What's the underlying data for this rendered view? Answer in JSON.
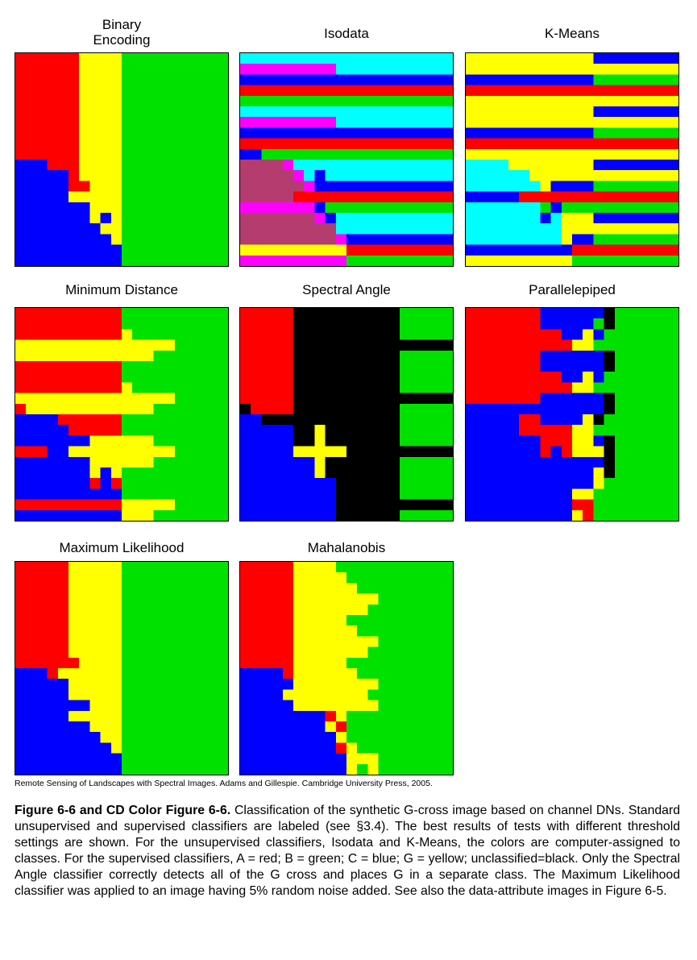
{
  "colors": {
    "red": "#ff0000",
    "green": "#00e100",
    "blue": "#0000ff",
    "yellow": "#ffff00",
    "cyan": "#00ffff",
    "magenta": "#ff00ff",
    "maroon": "#b43c6e",
    "black": "#000000"
  },
  "panels": {
    "binary_encoding": {
      "title": "Binary\nEncoding"
    },
    "isodata": {
      "title": "Isodata"
    },
    "kmeans": {
      "title": "K-Means"
    },
    "minimum_distance": {
      "title": "Minimum Distance"
    },
    "spectral_angle": {
      "title": "Spectral Angle"
    },
    "parallelepiped": {
      "title": "Parallelepiped"
    },
    "maximum_likelihood": {
      "title": "Maximum Likelihood"
    },
    "mahalanobis": {
      "title": "Mahalanobis"
    }
  },
  "credit": "Remote Sensing of Landscapes with Spectral Images.  Adams and Gillespie.  Cambridge University Press, 2005.",
  "caption": {
    "bold": "Figure 6-6 and CD Color Figure 6-6.",
    "text": "  Classification of the synthetic G-cross image based on channel DNs.  Standard unsupervised and supervised classifiers are labeled (see §3.4).  The best results of tests with different threshold settings are shown.  For the unsupervised classifiers, Isodata and K-Means, the colors are computer-assigned to classes.  For the supervised classifiers, A  = red; B = green; C = blue; G = yellow; unclassified=black. Only the Spectral Angle classifier correctly detects all of the G cross and places G in a separate class. The Maximum Likelihood classifier was applied to an image having 5% random noise added.  See also the data-attribute images in Figure 6-5."
  }
}
